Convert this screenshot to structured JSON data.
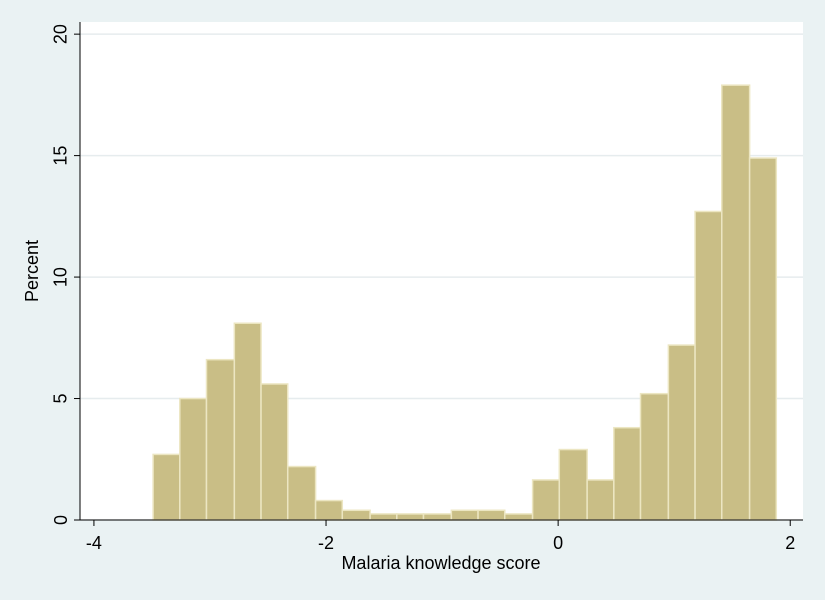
{
  "chart_data": {
    "type": "histogram",
    "x_label": "Malaria knowledge score",
    "y_label": "Percent",
    "bins": [
      -3.49,
      -3.26,
      -3.03,
      -2.79,
      -2.56,
      -2.33,
      -2.09,
      -1.86,
      -1.62,
      -1.39,
      -1.16,
      -0.92,
      -0.69,
      -0.46,
      -0.22,
      0.01,
      0.25,
      0.48,
      0.71,
      0.95,
      1.18,
      1.41,
      1.65,
      1.88
    ],
    "values": [
      2.7,
      5.0,
      6.6,
      8.1,
      5.6,
      2.2,
      0.8,
      0.4,
      0.25,
      0.25,
      0.25,
      0.4,
      0.4,
      0.25,
      1.65,
      2.9,
      1.65,
      3.8,
      5.2,
      7.2,
      12.7,
      17.9,
      14.9
    ],
    "color": "#c9be86",
    "xlim": [
      -4.12,
      2.11
    ],
    "xticks": [
      -4,
      -2,
      0,
      2
    ],
    "ylim": [
      0,
      20.5
    ],
    "yticks": [
      0,
      5,
      10,
      15,
      20
    ],
    "grid": true
  }
}
